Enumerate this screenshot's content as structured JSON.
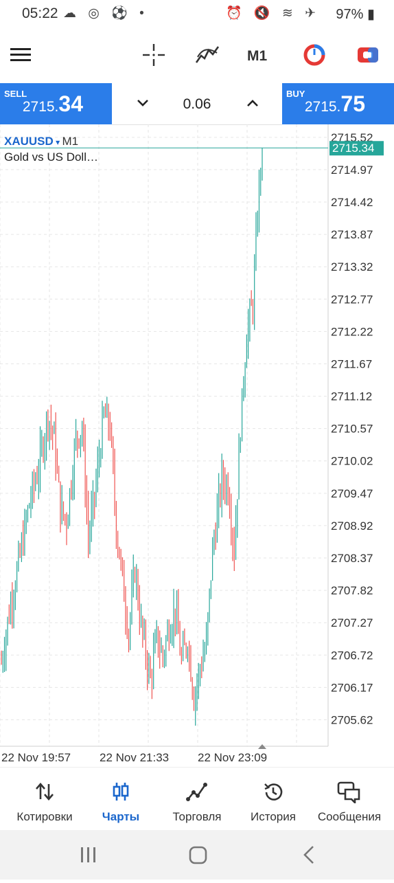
{
  "status": {
    "time": "05:22",
    "left_icons": "☁ ◎ ⚽ •",
    "right_icons": "⏰ 🔇 ≋ ✈",
    "battery": "97%"
  },
  "toolbar": {
    "timeframe_label": "M1"
  },
  "trade": {
    "sell_label": "SELL",
    "sell_price_small": "2715.",
    "sell_price_big": "34",
    "buy_label": "BUY",
    "buy_price_small": "2715.",
    "buy_price_big": "75",
    "lot": "0.06",
    "colors": {
      "accent": "#2b7de9"
    }
  },
  "chart_data": {
    "type": "candlestick",
    "symbol": "XAUUSD",
    "timeframe": "M1",
    "description": "Gold vs US Doll…",
    "current_price": "2715.34",
    "price_labels": [
      "2715.52",
      "2714.97",
      "2714.42",
      "2713.87",
      "2713.32",
      "2712.77",
      "2712.22",
      "2711.67",
      "2711.12",
      "2710.57",
      "2710.02",
      "2709.47",
      "2708.92",
      "2708.37",
      "2707.82",
      "2707.27",
      "2706.72",
      "2706.17",
      "2705.62"
    ],
    "time_labels": [
      "22 Nov 19:57",
      "22 Nov 21:33",
      "22 Nov 23:09"
    ],
    "ylim": [
      2705.17,
      2715.74
    ],
    "colors": {
      "up": "#26a69a",
      "down": "#ef5350",
      "price_line": "#26a69a",
      "grid": "#e6e6e6"
    },
    "waypoints": [
      [
        0,
        2706.6
      ],
      [
        6,
        2707.6
      ],
      [
        12,
        2708.4
      ],
      [
        18,
        2709.3
      ],
      [
        24,
        2709.9
      ],
      [
        30,
        2710.8
      ],
      [
        34,
        2710.4
      ],
      [
        38,
        2709.2
      ],
      [
        42,
        2709.0
      ],
      [
        48,
        2710.4
      ],
      [
        52,
        2710.6
      ],
      [
        56,
        2708.7
      ],
      [
        60,
        2709.4
      ],
      [
        66,
        2710.8
      ],
      [
        70,
        2710.6
      ],
      [
        74,
        2708.9
      ],
      [
        78,
        2708.0
      ],
      [
        82,
        2707.1
      ],
      [
        86,
        2708.2
      ],
      [
        90,
        2707.2
      ],
      [
        96,
        2706.3
      ],
      [
        100,
        2707.0
      ],
      [
        104,
        2706.7
      ],
      [
        108,
        2707.2
      ],
      [
        112,
        2707.5
      ],
      [
        116,
        2706.6
      ],
      [
        120,
        2707.0
      ],
      [
        124,
        2706.0
      ],
      [
        128,
        2706.5
      ],
      [
        132,
        2706.9
      ],
      [
        136,
        2708.5
      ],
      [
        142,
        2709.7
      ],
      [
        146,
        2709.6
      ],
      [
        150,
        2708.5
      ],
      [
        154,
        2710.6
      ],
      [
        158,
        2712.2
      ],
      [
        162,
        2712.7
      ],
      [
        166,
        2714.7
      ],
      [
        168,
        2715.34
      ]
    ]
  },
  "nav": {
    "items": [
      {
        "label": "Котировки"
      },
      {
        "label": "Чарты"
      },
      {
        "label": "Торговля"
      },
      {
        "label": "История"
      },
      {
        "label": "Сообщения"
      }
    ]
  }
}
